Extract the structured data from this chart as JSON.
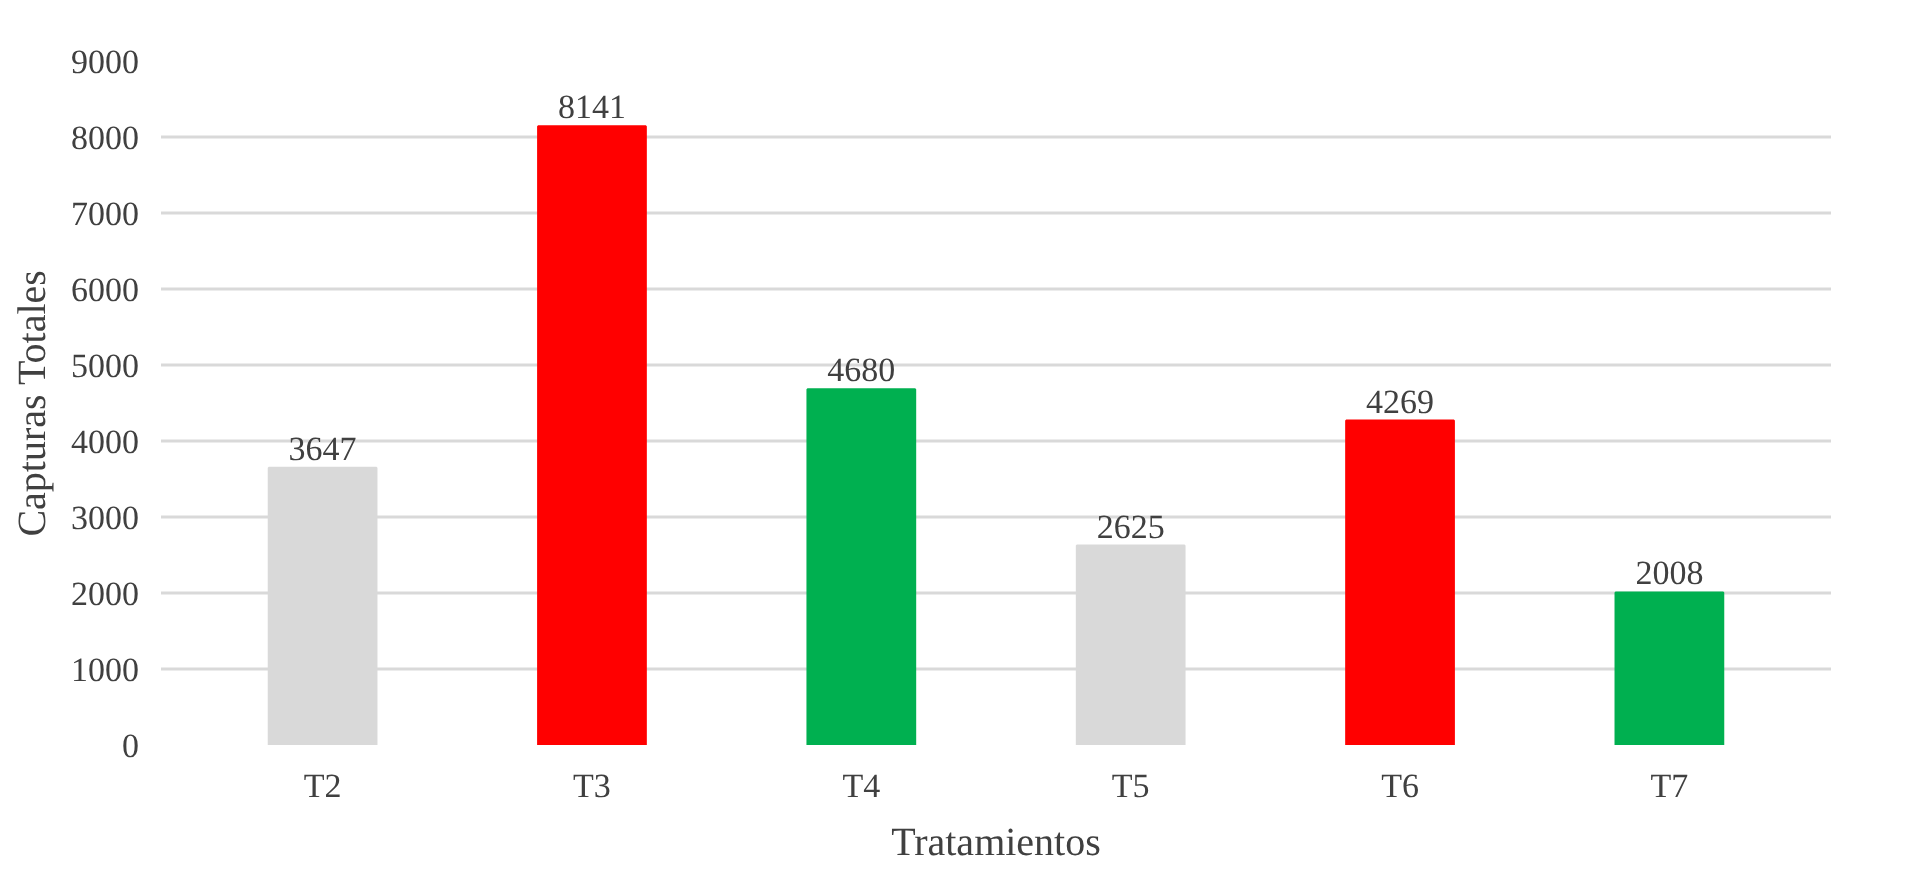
{
  "chart_data": {
    "type": "bar",
    "xlabel": "Tratamientos",
    "ylabel": "Capturas Totales",
    "categories": [
      "T2",
      "T3",
      "T4",
      "T5",
      "T6",
      "T7"
    ],
    "values": [
      3647,
      8141,
      4680,
      2625,
      4269,
      2008
    ],
    "colors": [
      "#d9d9d9",
      "#ff0000",
      "#00b050",
      "#d9d9d9",
      "#ff0000",
      "#00b050"
    ],
    "ylim": [
      0,
      9000
    ],
    "yticks": [
      0,
      1000,
      2000,
      3000,
      4000,
      5000,
      6000,
      7000,
      8000,
      9000
    ],
    "grid": "y",
    "data_labels": true
  }
}
